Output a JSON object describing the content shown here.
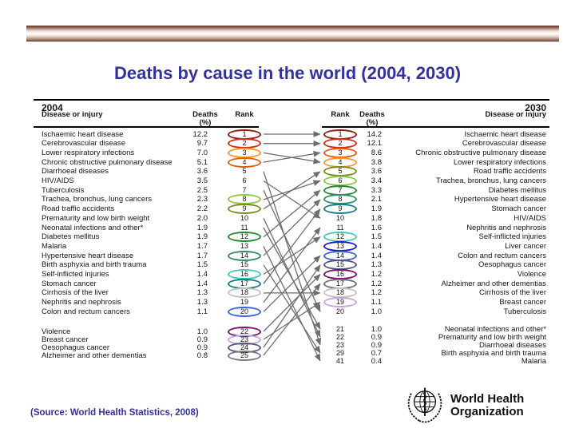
{
  "slide": {
    "title": "Deaths by cause in the world (2004, 2030)",
    "source_note": "(Source: World Health Statistics, 2008)",
    "who_logo": {
      "line1": "World Health",
      "line2": "Organization"
    }
  },
  "table_headers": {
    "disease": "Disease or injury",
    "deaths": "Deaths\n(%)",
    "rank": "Rank"
  },
  "colors": {
    "title_text": "#32329B",
    "source_text": "#32329B",
    "arrow": "#6E6E6E",
    "table_text": "#161616"
  },
  "chart_data": {
    "type": "table",
    "title": "Deaths by cause in the world (2004, 2030)",
    "subtitle": "Rank change of leading causes of death, 2004 vs 2030 (slopegraph)",
    "left_2004": {
      "year": "2004",
      "columns": [
        "Disease or injury",
        "Deaths (%)",
        "Rank"
      ],
      "rows": [
        {
          "disease": "Ischaemic heart disease",
          "deaths_pct": "12.2",
          "rank": "1",
          "color": "#8F1A0D"
        },
        {
          "disease": "Cerebrovascular disease",
          "deaths_pct": "9.7",
          "rank": "2",
          "color": "#D42A16"
        },
        {
          "disease": "Lower respiratory infections",
          "deaths_pct": "7.0",
          "rank": "3",
          "color": "#F09C2C"
        },
        {
          "disease": "Chronic obstructive pulmonary disease",
          "deaths_pct": "5.1",
          "rank": "4",
          "color": "#E35D15"
        },
        {
          "disease": "Diarrhoeal diseases",
          "deaths_pct": "3.6",
          "rank": "5",
          "color": null
        },
        {
          "disease": "HIV/AIDS",
          "deaths_pct": "3.5",
          "rank": "6",
          "color": null
        },
        {
          "disease": "Tuberculosis",
          "deaths_pct": "2.5",
          "rank": "7",
          "color": null
        },
        {
          "disease": "Trachea, bronchus, lung cancers",
          "deaths_pct": "2.3",
          "rank": "8",
          "color": "#8FC73F"
        },
        {
          "disease": "Road traffic accidents",
          "deaths_pct": "2.2",
          "rank": "9",
          "color": "#7C8B1F"
        },
        {
          "disease": "Prematurity and low birth weight",
          "deaths_pct": "2.0",
          "rank": "10",
          "color": null
        },
        {
          "disease": "Neonatal infections and other*",
          "deaths_pct": "1.9",
          "rank": "11",
          "color": null
        },
        {
          "disease": "Diabetes mellitus",
          "deaths_pct": "1.9",
          "rank": "12",
          "color": "#218A2B"
        },
        {
          "disease": "Malaria",
          "deaths_pct": "1.7",
          "rank": "13",
          "color": null
        },
        {
          "disease": "Hypertensive heart disease",
          "deaths_pct": "1.7",
          "rank": "14",
          "color": "#2E8E68"
        },
        {
          "disease": "Birth asphyxia and birth trauma",
          "deaths_pct": "1.5",
          "rank": "15",
          "color": null
        },
        {
          "disease": "Self-inflicted injuries",
          "deaths_pct": "1.4",
          "rank": "16",
          "color": "#45C8BE"
        },
        {
          "disease": "Stomach cancer",
          "deaths_pct": "1.4",
          "rank": "17",
          "color": "#157F85"
        },
        {
          "disease": "Cirrhosis of the liver",
          "deaths_pct": "1.3",
          "rank": "18",
          "color": "#C2C2C2"
        },
        {
          "disease": "Nephritis and nephrosis",
          "deaths_pct": "1.3",
          "rank": "19",
          "color": null
        },
        {
          "disease": "Colon and rectum cancers",
          "deaths_pct": "1.1",
          "rank": "20",
          "color": "#3566DF"
        },
        {
          "disease": "Violence",
          "deaths_pct": "1.0",
          "rank": "22",
          "color": "#7C0F6E"
        },
        {
          "disease": "Breast cancer",
          "deaths_pct": "0.9",
          "rank": "23",
          "color": "#C6A3E5"
        },
        {
          "disease": "Oesophagus cancer",
          "deaths_pct": "0.9",
          "rank": "24",
          "color": "#54567A"
        },
        {
          "disease": "Alzheimer and other dementias",
          "deaths_pct": "0.8",
          "rank": "25",
          "color": "#7A7A7A"
        }
      ]
    },
    "right_2030": {
      "year": "2030",
      "columns": [
        "Rank",
        "Deaths (%)",
        "Disease or injury"
      ],
      "rows": [
        {
          "rank": "1",
          "deaths_pct": "14.2",
          "disease": "Ischaemic heart disease",
          "color": "#8F1A0D"
        },
        {
          "rank": "2",
          "deaths_pct": "12.1",
          "disease": "Cerebrovascular disease",
          "color": "#D42A16"
        },
        {
          "rank": "3",
          "deaths_pct": "8.6",
          "disease": "Chronic obstructive pulmonary disease",
          "color": "#E35D15"
        },
        {
          "rank": "4",
          "deaths_pct": "3.8",
          "disease": "Lower respiratory infections",
          "color": "#F09C2C"
        },
        {
          "rank": "5",
          "deaths_pct": "3.6",
          "disease": "Road traffic accidents",
          "color": "#7C8B1F"
        },
        {
          "rank": "6",
          "deaths_pct": "3.4",
          "disease": "Trachea, bronchus, lung cancers",
          "color": "#8FC73F"
        },
        {
          "rank": "7",
          "deaths_pct": "3.3",
          "disease": "Diabetes mellitus",
          "color": "#218A2B"
        },
        {
          "rank": "8",
          "deaths_pct": "2.1",
          "disease": "Hypertensive heart disease",
          "color": "#2E8E68"
        },
        {
          "rank": "9",
          "deaths_pct": "1.9",
          "disease": "Stomach cancer",
          "color": "#157F85"
        },
        {
          "rank": "10",
          "deaths_pct": "1.8",
          "disease": "HIV/AIDS",
          "color": null
        },
        {
          "rank": "11",
          "deaths_pct": "1.6",
          "disease": "Nephritis and nephrosis",
          "color": null
        },
        {
          "rank": "12",
          "deaths_pct": "1.5",
          "disease": "Self-inflicted injuries",
          "color": "#45C8BE"
        },
        {
          "rank": "13",
          "deaths_pct": "1.4",
          "disease": "Liver cancer",
          "color": "#1C1ACC"
        },
        {
          "rank": "14",
          "deaths_pct": "1.4",
          "disease": "Colon and rectum cancers",
          "color": "#3566DF"
        },
        {
          "rank": "15",
          "deaths_pct": "1.3",
          "disease": "Oesophagus cancer",
          "color": "#54567A"
        },
        {
          "rank": "16",
          "deaths_pct": "1.2",
          "disease": "Violence",
          "color": "#7C0F6E"
        },
        {
          "rank": "17",
          "deaths_pct": "1.2",
          "disease": "Alzheimer and other dementias",
          "color": "#6F6F6F"
        },
        {
          "rank": "18",
          "deaths_pct": "1.2",
          "disease": "Cirrhosis of the liver",
          "color": "#C2C2C2"
        },
        {
          "rank": "19",
          "deaths_pct": "1.1",
          "disease": "Breast cancer",
          "color": "#C6A3E5"
        },
        {
          "rank": "20",
          "deaths_pct": "1.0",
          "disease": "Tuberculosis",
          "color": null
        },
        {
          "rank": "21",
          "deaths_pct": "1.0",
          "disease": "Neonatal infections and other*",
          "color": null
        },
        {
          "rank": "22",
          "deaths_pct": "0.9",
          "disease": "Prematurity and low birth weight",
          "color": null
        },
        {
          "rank": "23",
          "deaths_pct": "0.9",
          "disease": "Diarrhoeal diseases",
          "color": null
        },
        {
          "rank": "29",
          "deaths_pct": "0.7",
          "disease": "Birth asphyxia and birth trauma",
          "color": null
        },
        {
          "rank": "41",
          "deaths_pct": "0.4",
          "disease": "Malaria",
          "color": null
        }
      ]
    },
    "links_rank_2004_to_2030": [
      [
        1,
        1
      ],
      [
        2,
        2
      ],
      [
        3,
        4
      ],
      [
        4,
        3
      ],
      [
        5,
        23
      ],
      [
        6,
        10
      ],
      [
        7,
        20
      ],
      [
        8,
        6
      ],
      [
        9,
        5
      ],
      [
        10,
        22
      ],
      [
        11,
        21
      ],
      [
        12,
        7
      ],
      [
        13,
        41
      ],
      [
        14,
        8
      ],
      [
        15,
        29
      ],
      [
        16,
        12
      ],
      [
        17,
        9
      ],
      [
        18,
        18
      ],
      [
        19,
        11
      ],
      [
        20,
        14
      ],
      [
        22,
        16
      ],
      [
        23,
        19
      ],
      [
        24,
        15
      ],
      [
        25,
        17
      ]
    ]
  }
}
